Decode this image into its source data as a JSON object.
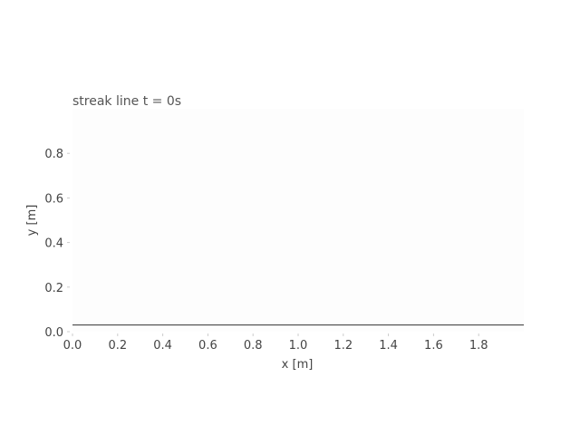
{
  "chart_data": {
    "type": "line",
    "title": "streak line  t = 0s",
    "xlabel": "x [m]",
    "ylabel": "y [m]",
    "xlim": [
      0.0,
      2.0
    ],
    "ylim": [
      0.0,
      1.0
    ],
    "x_ticks": [
      0.0,
      0.2,
      0.4,
      0.6,
      0.8,
      1.0,
      1.2,
      1.4,
      1.6,
      1.8
    ],
    "x_tick_labels": [
      "0.0",
      "0.2",
      "0.4",
      "0.6",
      "0.8",
      "1.0",
      "1.2",
      "1.4",
      "1.6",
      "1.8"
    ],
    "y_ticks": [
      0.0,
      0.2,
      0.4,
      0.6,
      0.8
    ],
    "y_tick_labels": [
      "0.0",
      "0.2",
      "0.4",
      "0.6",
      "0.8"
    ],
    "grid": false,
    "series": [
      {
        "x": [
          0.0,
          2.0
        ],
        "y": [
          0.03,
          0.03
        ],
        "color": "#333333"
      }
    ],
    "colors": {
      "axes_bg": "#fdfdfd",
      "text": "#444444",
      "line": "#333333"
    }
  }
}
